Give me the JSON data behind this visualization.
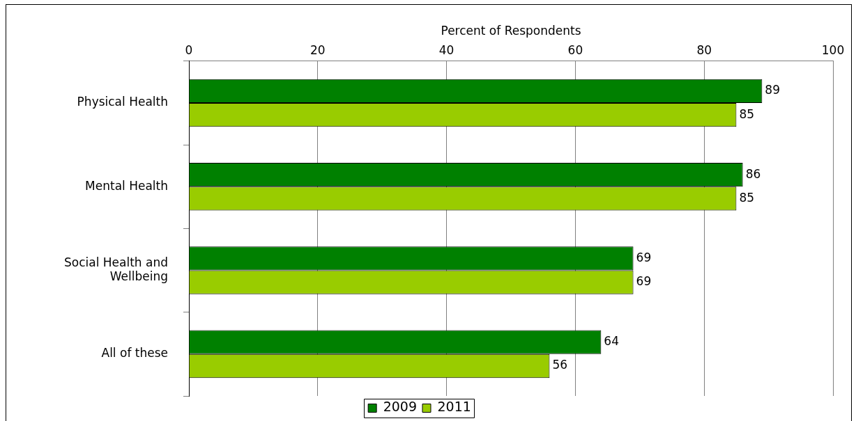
{
  "chart_data": {
    "type": "bar",
    "orientation": "horizontal",
    "xlabel": "Percent of Respondents",
    "categories": [
      "Physical Health",
      "Mental Health",
      "Social Health and Wellbeing",
      "All of these"
    ],
    "series": [
      {
        "name": "2009",
        "color": "#008000",
        "values": [
          89,
          86,
          69,
          64
        ]
      },
      {
        "name": "2011",
        "color": "#99cc00",
        "values": [
          85,
          85,
          69,
          56
        ]
      }
    ],
    "xlim": [
      0,
      100
    ],
    "xticks": [
      0,
      20,
      40,
      60,
      80,
      100
    ],
    "grid": "x",
    "legend": "bottom",
    "data_labels": true
  }
}
